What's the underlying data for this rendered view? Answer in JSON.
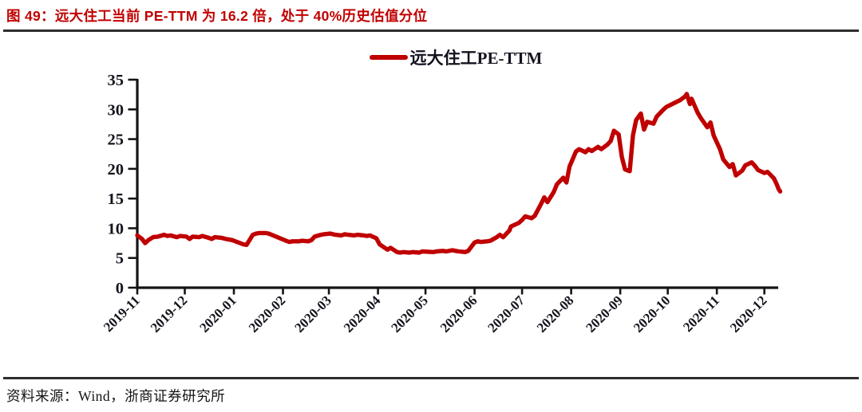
{
  "header": {
    "title": "图 49：远大住工当前 PE-TTM 为 16.2 倍，处于 40%历史估值分位"
  },
  "footer": {
    "text": "资料来源：Wind，浙商证券研究所"
  },
  "chart_data": {
    "type": "line",
    "title": "远大住工PE-TTM",
    "legend_position": "top-center",
    "grid": false,
    "line_color": "#c00000",
    "axis_color": "#141414",
    "x_axis": {
      "ticks": [
        "2019-11",
        "2019-12",
        "2020-01",
        "2020-02",
        "2020-03",
        "2020-04",
        "2020-05",
        "2020-06",
        "2020-07",
        "2020-08",
        "2020-09",
        "2020-10",
        "2020-11",
        "2020-12"
      ],
      "label_rotation_deg": -45
    },
    "y_axis": {
      "min": 0,
      "max": 35,
      "ticks": [
        0,
        5,
        10,
        15,
        20,
        25,
        30,
        35
      ]
    },
    "series": [
      {
        "name": "远大住工PE-TTM",
        "color": "#c00000",
        "points": [
          [
            "2019-11-01",
            8.8
          ],
          [
            "2019-11-04",
            8.2
          ],
          [
            "2019-11-06",
            7.5
          ],
          [
            "2019-11-08",
            8.0
          ],
          [
            "2019-11-11",
            8.5
          ],
          [
            "2019-11-14",
            8.6
          ],
          [
            "2019-11-18",
            8.9
          ],
          [
            "2019-11-20",
            8.7
          ],
          [
            "2019-11-22",
            8.8
          ],
          [
            "2019-11-26",
            8.5
          ],
          [
            "2019-11-28",
            8.7
          ],
          [
            "2019-12-02",
            8.6
          ],
          [
            "2019-12-04",
            8.2
          ],
          [
            "2019-12-06",
            8.6
          ],
          [
            "2019-12-10",
            8.5
          ],
          [
            "2019-12-12",
            8.7
          ],
          [
            "2019-12-16",
            8.4
          ],
          [
            "2019-12-18",
            8.2
          ],
          [
            "2019-12-20",
            8.5
          ],
          [
            "2019-12-24",
            8.4
          ],
          [
            "2019-12-27",
            8.2
          ],
          [
            "2019-12-31",
            8.0
          ],
          [
            "2020-01-03",
            7.7
          ],
          [
            "2020-01-07",
            7.3
          ],
          [
            "2020-01-09",
            7.2
          ],
          [
            "2020-01-13",
            8.9
          ],
          [
            "2020-01-15",
            9.1
          ],
          [
            "2020-01-17",
            9.2
          ],
          [
            "2020-01-21",
            9.2
          ],
          [
            "2020-01-23",
            9.1
          ],
          [
            "2020-02-03",
            7.9
          ],
          [
            "2020-02-05",
            7.7
          ],
          [
            "2020-02-07",
            7.8
          ],
          [
            "2020-02-11",
            7.8
          ],
          [
            "2020-02-13",
            7.9
          ],
          [
            "2020-02-17",
            7.8
          ],
          [
            "2020-02-19",
            8.0
          ],
          [
            "2020-02-21",
            8.6
          ],
          [
            "2020-02-25",
            8.9
          ],
          [
            "2020-02-27",
            9.0
          ],
          [
            "2020-03-02",
            9.1
          ],
          [
            "2020-03-05",
            8.9
          ],
          [
            "2020-03-09",
            8.8
          ],
          [
            "2020-03-11",
            9.0
          ],
          [
            "2020-03-13",
            8.9
          ],
          [
            "2020-03-17",
            8.8
          ],
          [
            "2020-03-19",
            8.9
          ],
          [
            "2020-03-23",
            8.8
          ],
          [
            "2020-03-25",
            8.7
          ],
          [
            "2020-03-27",
            8.8
          ],
          [
            "2020-03-31",
            8.3
          ],
          [
            "2020-04-02",
            7.3
          ],
          [
            "2020-04-07",
            6.4
          ],
          [
            "2020-04-09",
            6.7
          ],
          [
            "2020-04-13",
            6.0
          ],
          [
            "2020-04-15",
            5.9
          ],
          [
            "2020-04-17",
            6.0
          ],
          [
            "2020-04-21",
            5.9
          ],
          [
            "2020-04-23",
            6.0
          ],
          [
            "2020-04-27",
            5.9
          ],
          [
            "2020-04-29",
            6.1
          ],
          [
            "2020-05-06",
            6.0
          ],
          [
            "2020-05-08",
            6.1
          ],
          [
            "2020-05-12",
            6.2
          ],
          [
            "2020-05-14",
            6.1
          ],
          [
            "2020-05-18",
            6.3
          ],
          [
            "2020-05-20",
            6.2
          ],
          [
            "2020-05-22",
            6.1
          ],
          [
            "2020-05-26",
            6.0
          ],
          [
            "2020-05-28",
            6.2
          ],
          [
            "2020-06-01",
            7.6
          ],
          [
            "2020-06-03",
            7.8
          ],
          [
            "2020-06-05",
            7.7
          ],
          [
            "2020-06-09",
            7.8
          ],
          [
            "2020-06-11",
            7.9
          ],
          [
            "2020-06-15",
            8.5
          ],
          [
            "2020-06-17",
            8.9
          ],
          [
            "2020-06-19",
            8.5
          ],
          [
            "2020-06-23",
            9.6
          ],
          [
            "2020-06-24",
            10.3
          ],
          [
            "2020-06-29",
            10.9
          ],
          [
            "2020-07-01",
            11.4
          ],
          [
            "2020-07-03",
            12.0
          ],
          [
            "2020-07-07",
            11.7
          ],
          [
            "2020-07-09",
            12.1
          ],
          [
            "2020-07-13",
            14.1
          ],
          [
            "2020-07-15",
            15.2
          ],
          [
            "2020-07-17",
            14.4
          ],
          [
            "2020-07-21",
            16.1
          ],
          [
            "2020-07-23",
            17.4
          ],
          [
            "2020-07-27",
            18.5
          ],
          [
            "2020-07-29",
            17.7
          ],
          [
            "2020-07-31",
            20.4
          ],
          [
            "2020-08-04",
            22.9
          ],
          [
            "2020-08-06",
            23.3
          ],
          [
            "2020-08-10",
            22.8
          ],
          [
            "2020-08-12",
            23.3
          ],
          [
            "2020-08-14",
            23.0
          ],
          [
            "2020-08-18",
            23.7
          ],
          [
            "2020-08-20",
            23.3
          ],
          [
            "2020-08-24",
            24.1
          ],
          [
            "2020-08-26",
            24.7
          ],
          [
            "2020-08-28",
            26.4
          ],
          [
            "2020-08-31",
            25.8
          ],
          [
            "2020-09-02",
            22.0
          ],
          [
            "2020-09-04",
            19.9
          ],
          [
            "2020-09-07",
            19.6
          ],
          [
            "2020-09-09",
            25.6
          ],
          [
            "2020-09-11",
            28.2
          ],
          [
            "2020-09-14",
            29.3
          ],
          [
            "2020-09-16",
            26.6
          ],
          [
            "2020-09-18",
            27.9
          ],
          [
            "2020-09-22",
            27.6
          ],
          [
            "2020-09-24",
            28.8
          ],
          [
            "2020-09-28",
            29.9
          ],
          [
            "2020-09-30",
            30.4
          ],
          [
            "2020-10-09",
            31.6
          ],
          [
            "2020-10-12",
            32.2
          ],
          [
            "2020-10-13",
            32.6
          ],
          [
            "2020-10-15",
            30.9
          ],
          [
            "2020-10-16",
            31.8
          ],
          [
            "2020-10-20",
            29.4
          ],
          [
            "2020-10-22",
            28.5
          ],
          [
            "2020-10-26",
            27.0
          ],
          [
            "2020-10-28",
            27.8
          ],
          [
            "2020-10-30",
            25.6
          ],
          [
            "2020-11-03",
            23.3
          ],
          [
            "2020-11-05",
            21.6
          ],
          [
            "2020-11-09",
            20.3
          ],
          [
            "2020-11-11",
            20.8
          ],
          [
            "2020-11-13",
            18.9
          ],
          [
            "2020-11-17",
            19.7
          ],
          [
            "2020-11-19",
            20.6
          ],
          [
            "2020-11-23",
            21.1
          ],
          [
            "2020-11-25",
            20.5
          ],
          [
            "2020-11-27",
            19.8
          ],
          [
            "2020-12-01",
            19.3
          ],
          [
            "2020-12-03",
            19.5
          ],
          [
            "2020-12-07",
            18.4
          ],
          [
            "2020-12-09",
            17.3
          ],
          [
            "2020-12-10",
            16.6
          ],
          [
            "2020-12-11",
            16.2
          ]
        ]
      }
    ]
  }
}
